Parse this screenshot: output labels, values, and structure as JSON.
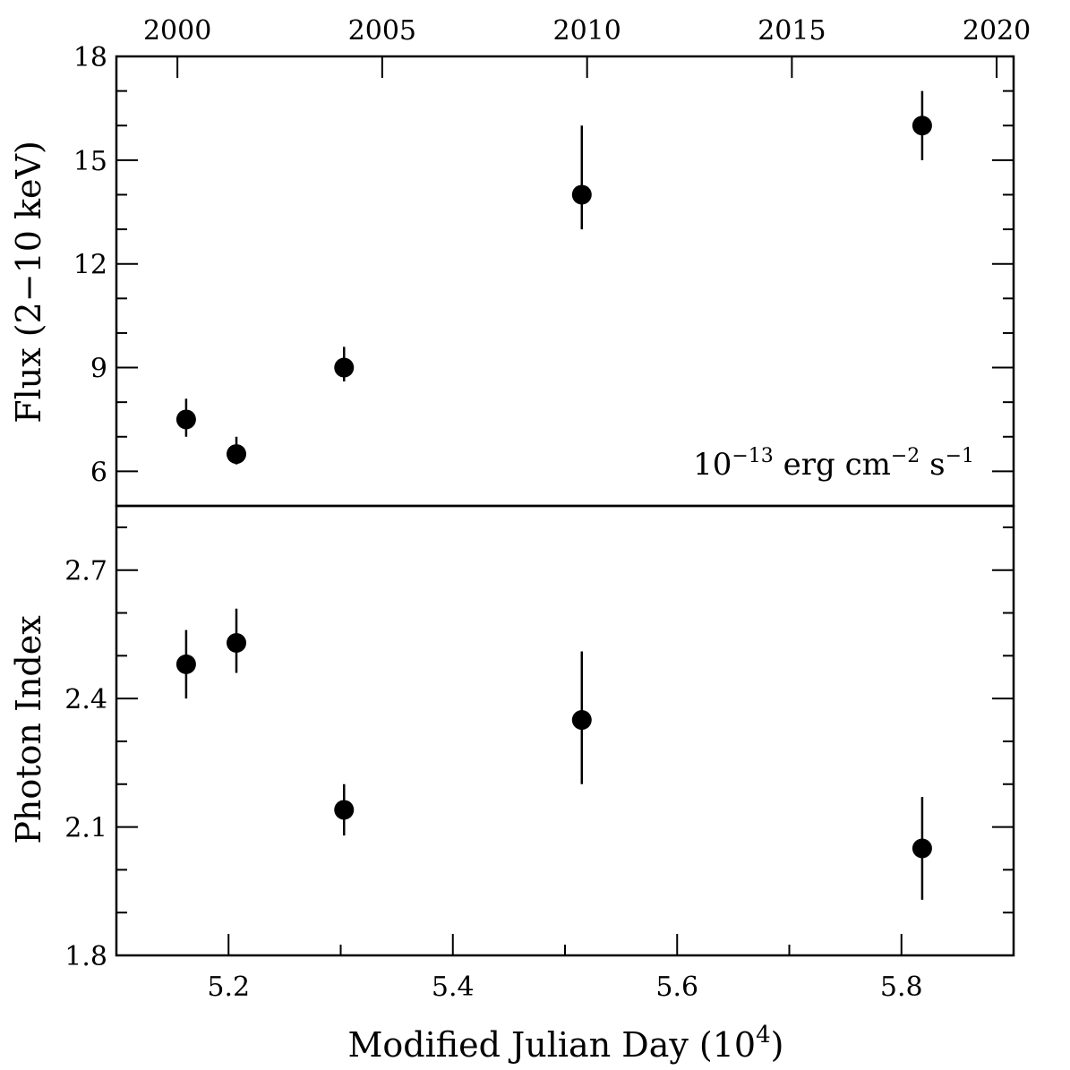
{
  "chart_data": [
    {
      "type": "scatter",
      "panel": "top",
      "ylabel": "Flux (2−10 keV)",
      "unit_prefix": "10",
      "unit_exp": "−13",
      "unit_mid": " erg cm",
      "unit_exp2": "−2",
      "unit_mid2": " s",
      "unit_exp3": "−1",
      "ylim": [
        5,
        18
      ],
      "y_ticks": [
        6,
        9,
        12,
        15,
        18
      ],
      "y_tick_labels": [
        "6",
        "9",
        "12",
        "15",
        "18"
      ],
      "y_minor_step": 1,
      "series": [
        {
          "name": "Flux",
          "x": [
            5.1622,
            5.207,
            5.303,
            5.515,
            5.8185
          ],
          "y": [
            7.5,
            6.5,
            9.0,
            14.0,
            16.0
          ],
          "y_err_low": [
            7.0,
            6.2,
            8.6,
            13.0,
            15.0
          ],
          "y_err_high": [
            8.1,
            7.0,
            9.6,
            16.0,
            17.0
          ]
        }
      ]
    },
    {
      "type": "scatter",
      "panel": "bottom",
      "ylabel": "Photon Index",
      "ylim": [
        1.8,
        2.85
      ],
      "y_ticks": [
        1.8,
        2.1,
        2.4,
        2.7
      ],
      "y_tick_labels": [
        "1.8",
        "2.1",
        "2.4",
        "2.7"
      ],
      "y_minor_step": 0.1,
      "series": [
        {
          "name": "Photon Index",
          "x": [
            5.1622,
            5.207,
            5.303,
            5.515,
            5.8185
          ],
          "y": [
            2.48,
            2.53,
            2.14,
            2.35,
            2.05
          ],
          "y_err_low": [
            2.4,
            2.46,
            2.08,
            2.2,
            1.93
          ],
          "y_err_high": [
            2.56,
            2.61,
            2.2,
            2.51,
            2.17
          ]
        }
      ]
    }
  ],
  "x_axis": {
    "xlabel_main": "Modified Julian Day (10",
    "xlabel_exp": "4",
    "xlabel_end": ")",
    "xlim": [
      5.1,
      5.9
    ],
    "ticks": [
      5.2,
      5.4,
      5.6,
      5.8
    ],
    "tick_labels": [
      "5.2",
      "5.4",
      "5.6",
      "5.8"
    ],
    "minor_step": 0.1
  },
  "top_axis": {
    "ticks_mjd": [
      5.1544,
      5.337,
      5.5197,
      5.7023,
      5.8849
    ],
    "tick_labels": [
      "2000",
      "2005",
      "2010",
      "2015",
      "2020"
    ]
  }
}
